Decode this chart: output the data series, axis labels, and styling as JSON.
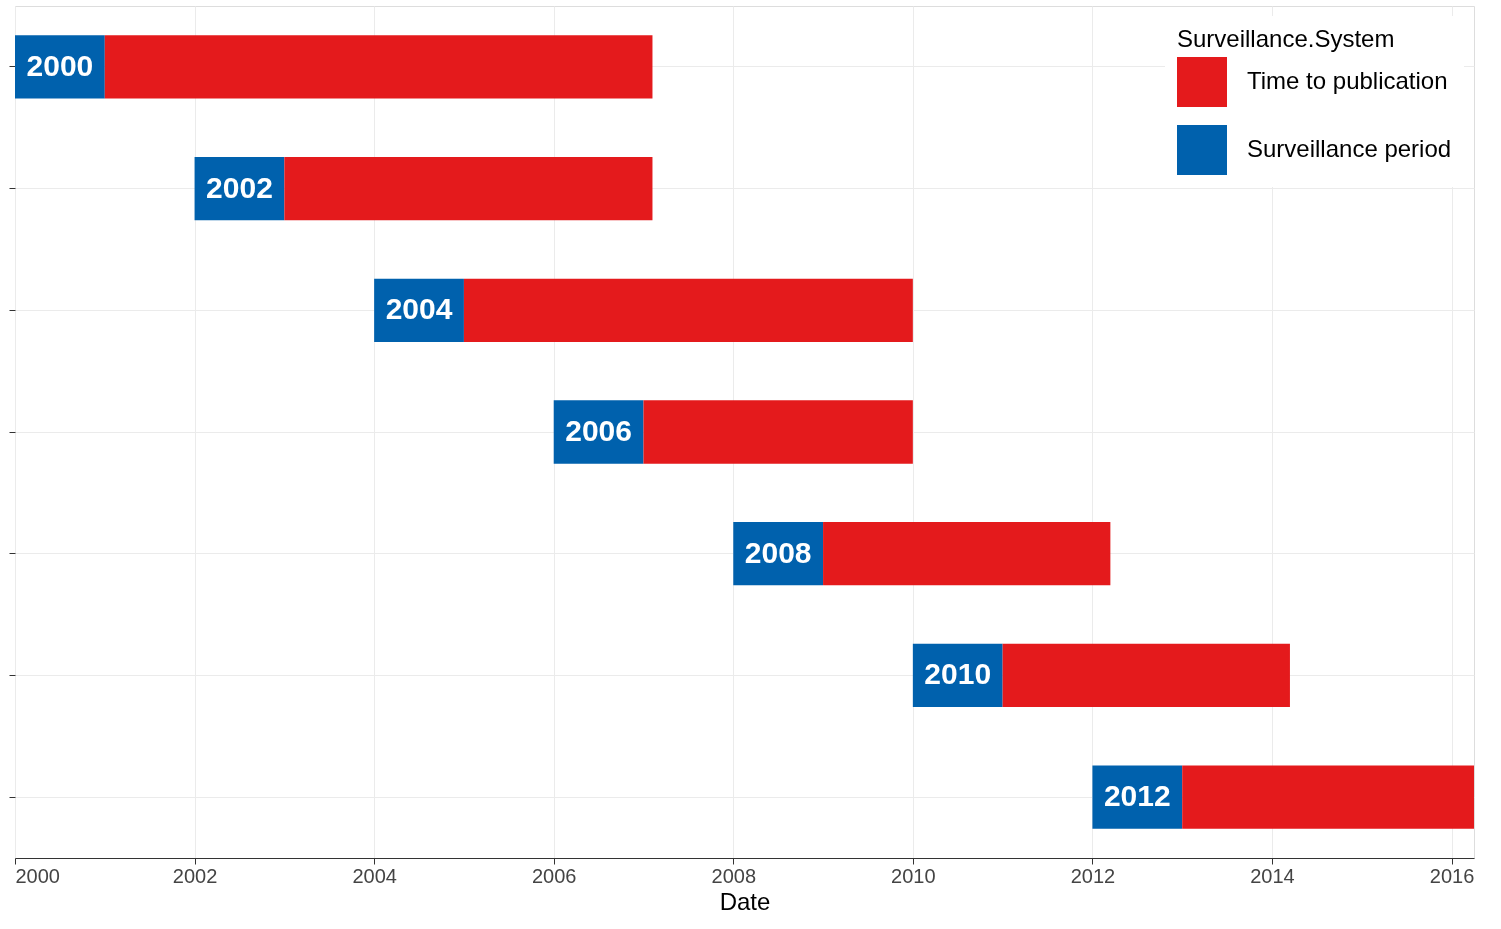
{
  "chart_data": {
    "type": "bar",
    "orientation": "horizontal",
    "xlabel": "Date",
    "legend_title": "Surveillance.System",
    "categories": [
      null,
      null,
      null,
      null,
      null,
      null,
      null
    ],
    "series": [
      {
        "name": "Surveillance period",
        "color": "#0061ad",
        "base": [
          2000,
          2002,
          2004,
          2006,
          2008,
          2010,
          2012
        ],
        "values": [
          1,
          1,
          1,
          1,
          1,
          1,
          1
        ]
      },
      {
        "name": "Time to publication",
        "color": "#e41a1c",
        "base": [
          2001,
          2003,
          2005,
          2007,
          2009,
          2011,
          2013
        ],
        "values": [
          6.1,
          4.1,
          5.0,
          3.0,
          3.2,
          3.2,
          3.25
        ]
      }
    ],
    "xlim": [
      2000,
      2016.25
    ],
    "xticks": [
      2000,
      2002,
      2004,
      2006,
      2008,
      2010,
      2012,
      2014,
      2016
    ],
    "annotations": [
      "2000",
      "2002",
      "2004",
      "2006",
      "2008",
      "2010",
      "2012"
    ],
    "grid": true,
    "legend": "top right",
    "tick_labels": "x"
  }
}
